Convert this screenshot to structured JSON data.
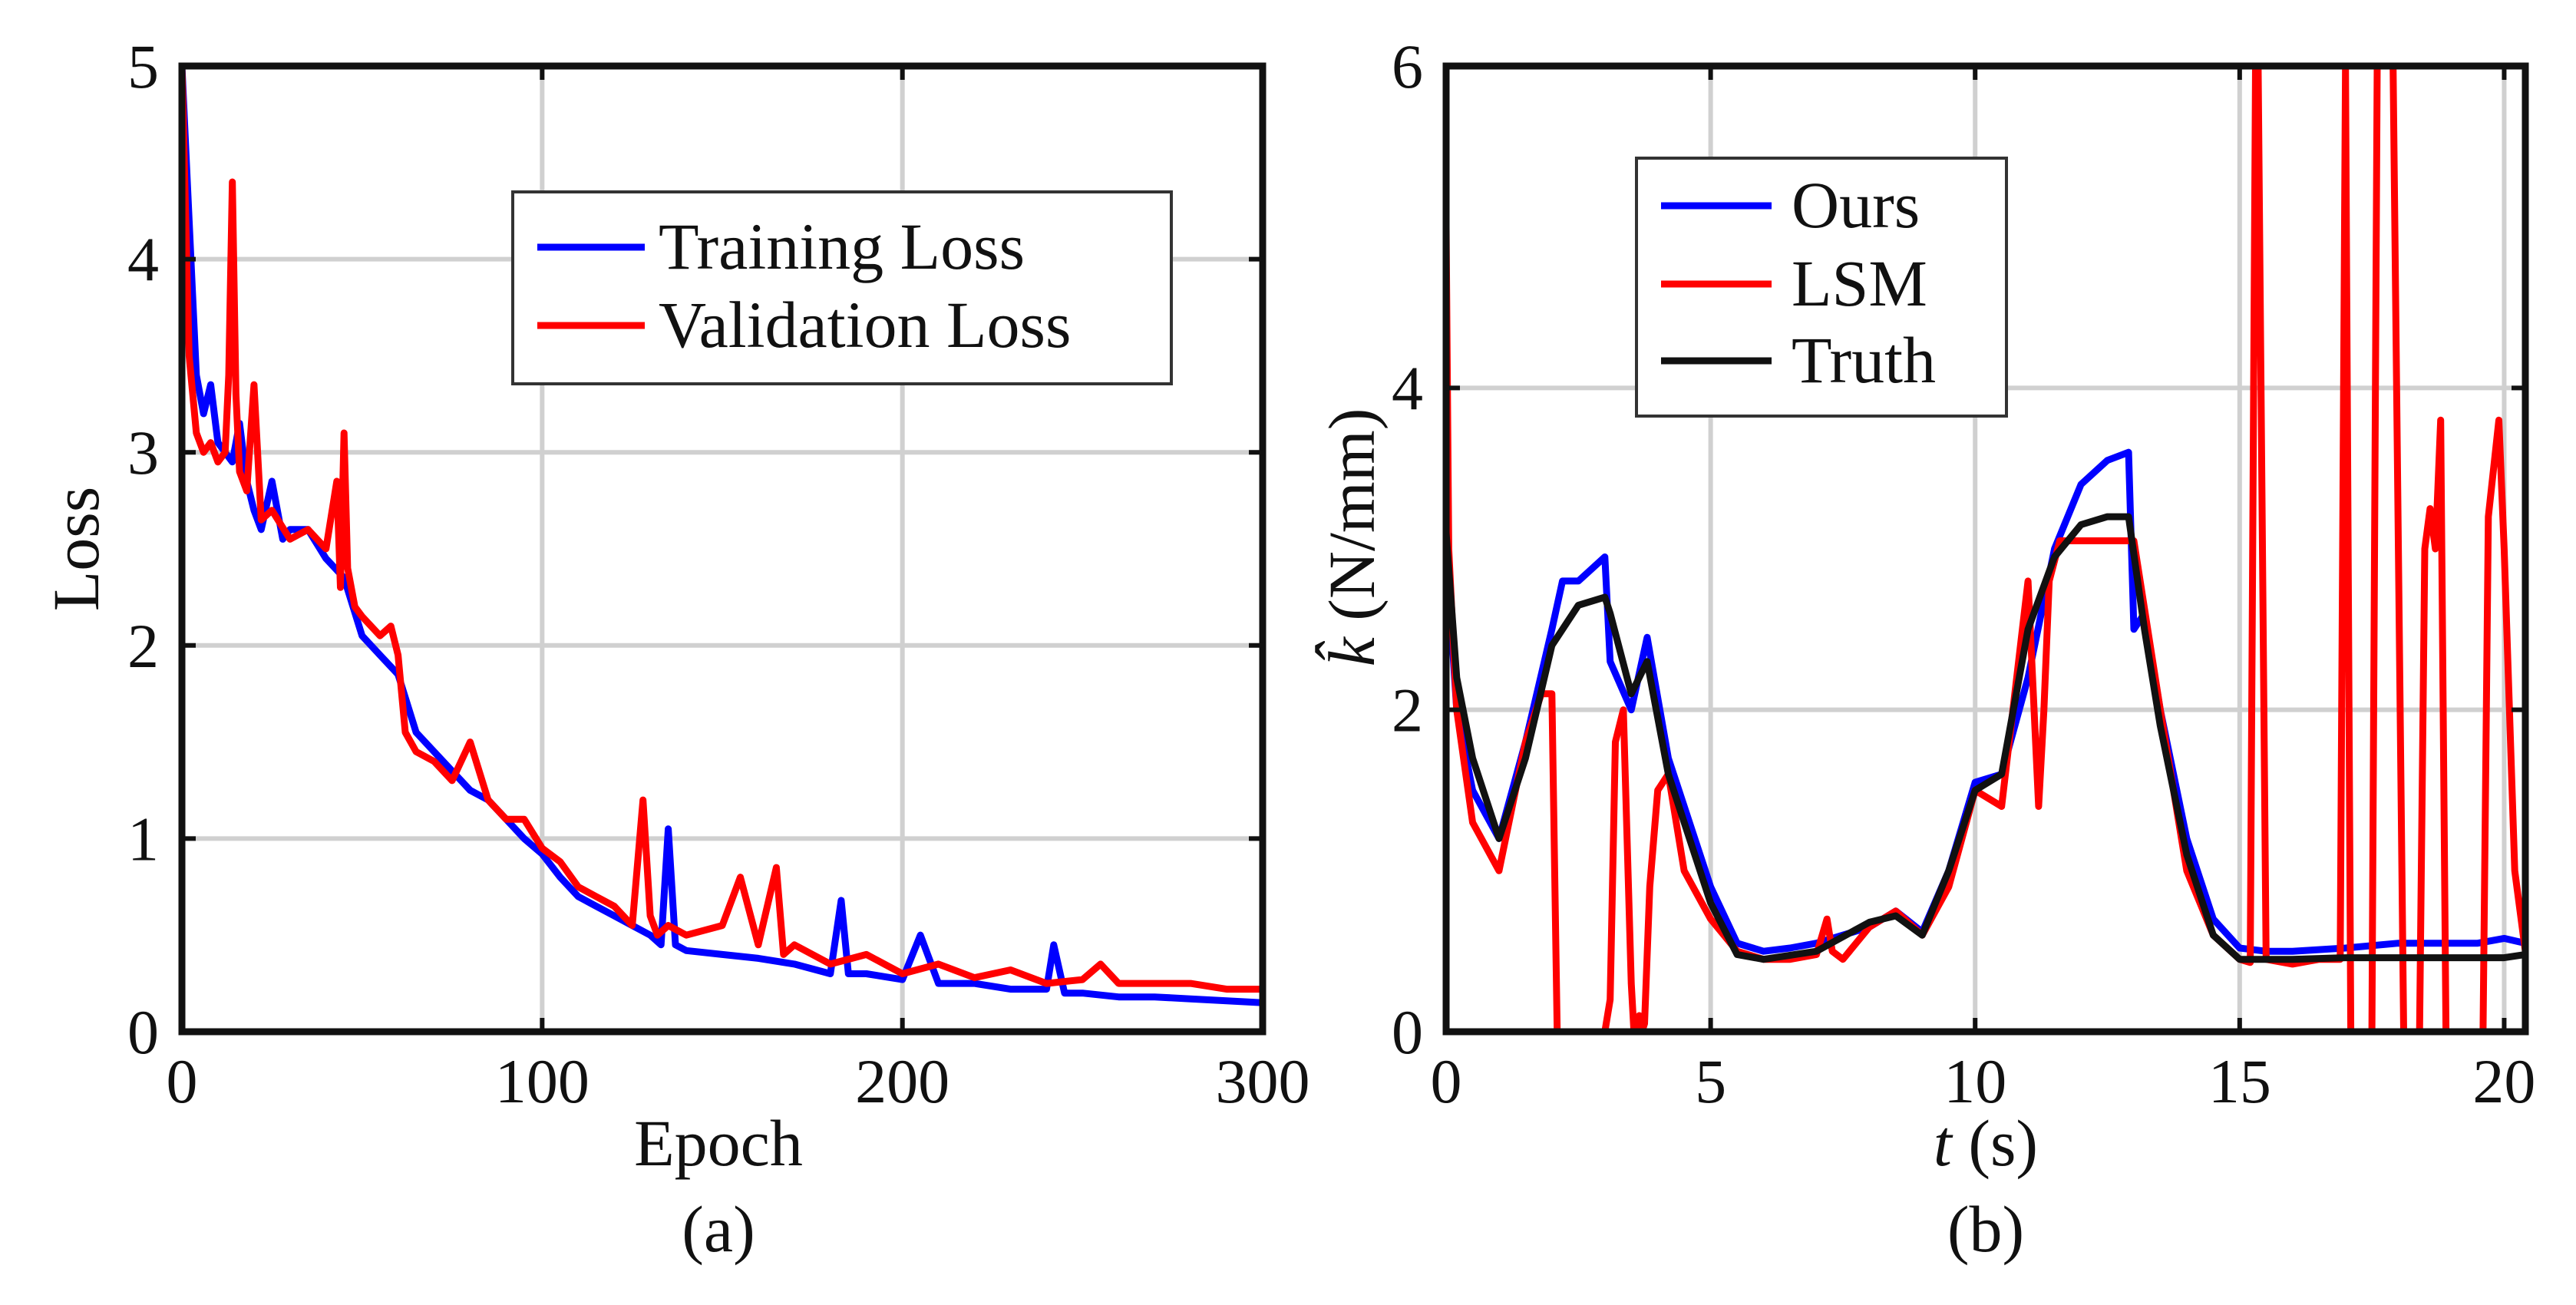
{
  "chart_data": [
    {
      "type": "line",
      "caption": "(a)",
      "xlabel": "Epoch",
      "ylabel": "Loss",
      "xlim": [
        0,
        300
      ],
      "ylim": [
        0,
        5
      ],
      "xticks": [
        0,
        100,
        200,
        300
      ],
      "yticks": [
        0,
        1,
        2,
        3,
        4,
        5
      ],
      "grid": true,
      "legend_position": "top-right",
      "series": [
        {
          "name": "Training Loss",
          "color": "#0000ff",
          "x": [
            0,
            2,
            4,
            6,
            8,
            10,
            12,
            14,
            16,
            18,
            20,
            22,
            25,
            28,
            30,
            35,
            40,
            45,
            50,
            55,
            60,
            65,
            70,
            75,
            80,
            85,
            90,
            95,
            100,
            105,
            110,
            115,
            120,
            125,
            130,
            133,
            135,
            137,
            140,
            150,
            160,
            170,
            180,
            183,
            185,
            190,
            200,
            205,
            210,
            220,
            230,
            240,
            242,
            245,
            250,
            260,
            270,
            280,
            290,
            300
          ],
          "values": [
            5.0,
            4.2,
            3.4,
            3.2,
            3.35,
            3.05,
            3.0,
            2.95,
            3.15,
            2.85,
            2.7,
            2.6,
            2.85,
            2.55,
            2.6,
            2.6,
            2.45,
            2.35,
            2.05,
            1.95,
            1.85,
            1.55,
            1.45,
            1.35,
            1.25,
            1.2,
            1.1,
            1.0,
            0.92,
            0.8,
            0.7,
            0.65,
            0.6,
            0.55,
            0.5,
            0.45,
            1.05,
            0.45,
            0.42,
            0.4,
            0.38,
            0.35,
            0.3,
            0.68,
            0.3,
            0.3,
            0.27,
            0.5,
            0.25,
            0.25,
            0.22,
            0.22,
            0.45,
            0.2,
            0.2,
            0.18,
            0.18,
            0.17,
            0.16,
            0.15
          ]
        },
        {
          "name": "Validation Loss",
          "color": "#ff0000",
          "x": [
            0,
            2,
            4,
            6,
            8,
            10,
            12,
            13,
            14,
            15,
            16,
            18,
            20,
            22,
            25,
            30,
            35,
            40,
            43,
            44,
            45,
            46,
            48,
            50,
            55,
            58,
            60,
            62,
            65,
            70,
            75,
            80,
            85,
            90,
            95,
            100,
            105,
            110,
            115,
            120,
            125,
            128,
            130,
            132,
            135,
            140,
            150,
            155,
            160,
            165,
            167,
            170,
            180,
            190,
            200,
            210,
            220,
            230,
            240,
            250,
            255,
            260,
            270,
            280,
            290,
            300
          ],
          "values": [
            5.0,
            3.5,
            3.1,
            3.0,
            3.05,
            2.95,
            3.0,
            3.4,
            4.4,
            3.3,
            2.9,
            2.8,
            3.35,
            2.65,
            2.7,
            2.55,
            2.6,
            2.5,
            2.85,
            2.3,
            3.1,
            2.4,
            2.2,
            2.15,
            2.05,
            2.1,
            1.95,
            1.55,
            1.45,
            1.4,
            1.3,
            1.5,
            1.2,
            1.1,
            1.1,
            0.95,
            0.88,
            0.75,
            0.7,
            0.65,
            0.55,
            1.2,
            0.6,
            0.5,
            0.55,
            0.5,
            0.55,
            0.8,
            0.45,
            0.85,
            0.4,
            0.45,
            0.35,
            0.4,
            0.3,
            0.35,
            0.28,
            0.32,
            0.25,
            0.27,
            0.35,
            0.25,
            0.25,
            0.25,
            0.22,
            0.22
          ]
        }
      ]
    },
    {
      "type": "line",
      "caption": "(b)",
      "xlabel_var": "t",
      "xlabel_unit": "(s)",
      "ylabel_var": "k̂",
      "ylabel_unit": "(N/mm)",
      "xlim": [
        0,
        20.4
      ],
      "ylim": [
        0,
        6
      ],
      "xticks": [
        0,
        5,
        10,
        15,
        20
      ],
      "yticks": [
        0,
        2,
        4,
        6
      ],
      "grid": true,
      "legend_position": "top-left",
      "series": [
        {
          "name": "Ours",
          "color": "#0000ff",
          "x": [
            0,
            0.1,
            0.2,
            0.5,
            1.0,
            1.5,
            2.0,
            2.2,
            2.5,
            3.0,
            3.1,
            3.5,
            3.8,
            4.2,
            5.0,
            5.5,
            6.0,
            6.5,
            7.0,
            7.5,
            8.0,
            8.5,
            9.0,
            9.5,
            10.0,
            10.5,
            11.0,
            11.5,
            12.0,
            12.5,
            12.9,
            13.0,
            13.2,
            13.5,
            14.0,
            14.5,
            15.0,
            15.5,
            16.0,
            17.0,
            18.0,
            18.5,
            19.0,
            19.5,
            20.0,
            20.4
          ],
          "values": [
            3.3,
            2.5,
            2.0,
            1.5,
            1.2,
            1.8,
            2.5,
            2.8,
            2.8,
            2.95,
            2.3,
            2.0,
            2.45,
            1.7,
            0.9,
            0.55,
            0.5,
            0.52,
            0.55,
            0.6,
            0.65,
            0.75,
            0.62,
            1.0,
            1.55,
            1.6,
            2.2,
            3.0,
            3.4,
            3.55,
            3.6,
            2.5,
            2.6,
            2.0,
            1.2,
            0.7,
            0.52,
            0.5,
            0.5,
            0.52,
            0.55,
            0.55,
            0.55,
            0.55,
            0.58,
            0.55
          ]
        },
        {
          "name": "LSM",
          "color": "#ff0000",
          "x": [
            0,
            0.05,
            0.2,
            0.5,
            1.0,
            1.5,
            1.8,
            2.0,
            2.1,
            2.2,
            2.3,
            2.5,
            3.0,
            3.1,
            3.2,
            3.35,
            3.5,
            3.55,
            3.65,
            3.7,
            3.75,
            3.85,
            4.0,
            4.2,
            4.5,
            5.0,
            5.5,
            6.0,
            6.5,
            7.0,
            7.2,
            7.3,
            7.5,
            8.0,
            8.5,
            9.0,
            9.5,
            10.0,
            10.5,
            11.0,
            11.2,
            11.3,
            11.4,
            11.6,
            12.0,
            12.5,
            13.0,
            13.5,
            14.0,
            14.5,
            15.0,
            15.2,
            15.3,
            15.35,
            15.5,
            16.0,
            16.5,
            16.9,
            17.0,
            17.1,
            17.4,
            17.5,
            17.6,
            17.8,
            17.9,
            18.0,
            18.1,
            18.4,
            18.5,
            18.6,
            18.7,
            18.8,
            18.9,
            19.5,
            19.6,
            19.7,
            19.9,
            20.0,
            20.2,
            20.4
          ],
          "values": [
            5.0,
            3.0,
            2.0,
            1.3,
            1.0,
            1.8,
            2.1,
            2.1,
            0.0,
            0.0,
            0.0,
            0.0,
            0.0,
            0.2,
            1.8,
            2.0,
            0.3,
            0.0,
            0.1,
            0.0,
            0.05,
            0.9,
            1.5,
            1.6,
            1.0,
            0.7,
            0.5,
            0.45,
            0.45,
            0.48,
            0.7,
            0.5,
            0.45,
            0.65,
            0.75,
            0.6,
            0.9,
            1.5,
            1.4,
            2.8,
            1.4,
            2.0,
            2.8,
            3.05,
            3.05,
            3.05,
            3.05,
            2.0,
            1.0,
            0.6,
            0.45,
            0.43,
            6.0,
            6.0,
            0.45,
            0.42,
            0.45,
            0.45,
            6.0,
            0.0,
            0.0,
            0.0,
            6.0,
            6.0,
            6.0,
            3.0,
            0.0,
            0.0,
            3.0,
            3.25,
            3.0,
            3.8,
            0.0,
            0.0,
            0.0,
            3.2,
            3.8,
            3.0,
            1.0,
            0.5
          ]
        },
        {
          "name": "Truth",
          "color": "#111111",
          "x": [
            0,
            0.2,
            0.5,
            1.0,
            1.5,
            2.0,
            2.5,
            3.0,
            3.1,
            3.5,
            3.8,
            4.2,
            5.0,
            5.5,
            6.0,
            7.0,
            8.0,
            8.5,
            9.0,
            9.5,
            10.0,
            10.5,
            11.0,
            11.5,
            12.0,
            12.5,
            12.9,
            13.2,
            13.5,
            14.0,
            14.5,
            15.0,
            16.0,
            17.0,
            18.0,
            19.0,
            20.0,
            20.4
          ],
          "values": [
            3.1,
            2.2,
            1.7,
            1.2,
            1.7,
            2.4,
            2.65,
            2.7,
            2.6,
            2.1,
            2.3,
            1.6,
            0.8,
            0.48,
            0.45,
            0.5,
            0.68,
            0.72,
            0.6,
            1.0,
            1.5,
            1.6,
            2.5,
            2.95,
            3.15,
            3.2,
            3.2,
            2.5,
            1.9,
            1.1,
            0.6,
            0.45,
            0.45,
            0.46,
            0.46,
            0.46,
            0.46,
            0.48
          ]
        }
      ]
    }
  ]
}
